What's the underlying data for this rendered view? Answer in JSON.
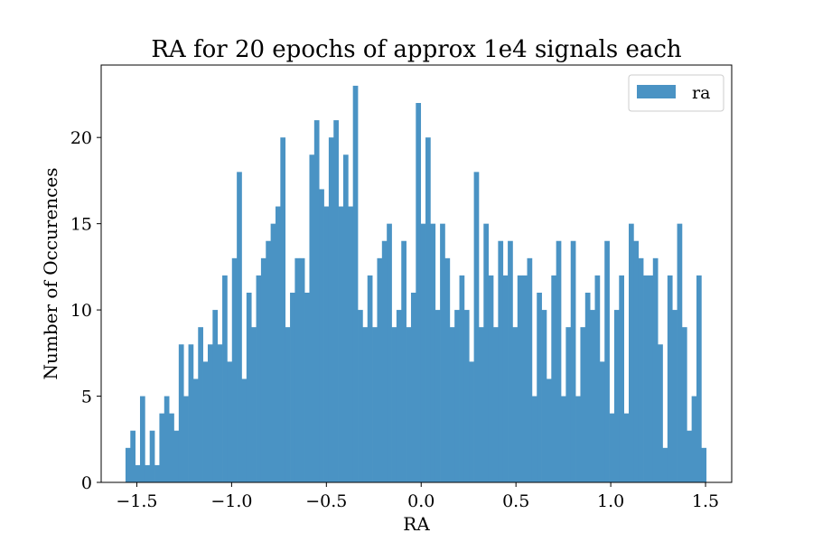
{
  "chart_data": {
    "type": "bar",
    "title": "RA for 20 epochs of approx 1e4 signals each",
    "xlabel": "RA",
    "ylabel": "Number of Occurences",
    "xlim": [
      -1.688,
      1.638
    ],
    "ylim": [
      0,
      24.2
    ],
    "x_ticks": [
      -1.5,
      -1.0,
      -0.5,
      0.0,
      0.5,
      1.0,
      1.5
    ],
    "x_tick_labels": [
      "−1.5",
      "−1.0",
      "−0.5",
      "0.0",
      "0.5",
      "1.0",
      "1.5"
    ],
    "y_ticks": [
      0,
      5,
      10,
      15,
      20
    ],
    "y_tick_labels": [
      "0",
      "5",
      "10",
      "15",
      "20"
    ],
    "grid": false,
    "legend_position": "top-right",
    "bin_range": [
      -1.5597,
      1.5032
    ],
    "bin_count": 120,
    "color": "#4a93c4",
    "series": [
      {
        "name": "ra",
        "values": [
          2,
          3,
          1,
          5,
          1,
          3,
          1,
          4,
          5,
          4,
          3,
          8,
          5,
          8,
          6,
          9,
          7,
          8,
          10,
          8,
          12,
          7,
          13,
          18,
          6,
          11,
          9,
          12,
          13,
          14,
          15,
          16,
          20,
          9,
          11,
          13,
          13,
          11,
          19,
          21,
          17,
          16,
          20,
          21,
          16,
          19,
          16,
          23,
          10,
          9,
          12,
          9,
          13,
          14,
          15,
          9,
          10,
          14,
          9,
          11,
          22,
          15,
          20,
          15,
          10,
          15,
          13,
          9,
          10,
          12,
          10,
          7,
          18,
          9,
          15,
          12,
          9,
          14,
          12,
          14,
          9,
          12,
          12,
          13,
          5,
          11,
          10,
          6,
          12,
          14,
          5,
          9,
          14,
          5,
          9,
          11,
          10,
          12,
          7,
          14,
          4,
          10,
          12,
          4,
          15,
          14,
          13,
          12,
          12,
          13,
          8,
          2,
          12,
          10,
          15,
          9,
          3,
          5,
          12,
          2
        ]
      }
    ]
  }
}
